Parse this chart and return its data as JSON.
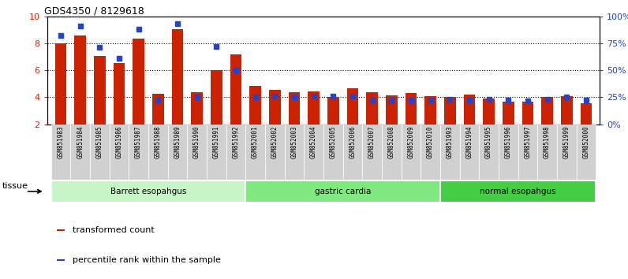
{
  "title": "GDS4350 / 8129618",
  "samples": [
    "GSM851983",
    "GSM851984",
    "GSM851985",
    "GSM851986",
    "GSM851987",
    "GSM851988",
    "GSM851989",
    "GSM851990",
    "GSM851991",
    "GSM851992",
    "GSM852001",
    "GSM852002",
    "GSM852003",
    "GSM852004",
    "GSM852005",
    "GSM852006",
    "GSM852007",
    "GSM852008",
    "GSM852009",
    "GSM852010",
    "GSM851993",
    "GSM851994",
    "GSM851995",
    "GSM851996",
    "GSM851997",
    "GSM851998",
    "GSM851999",
    "GSM852000"
  ],
  "red_values": [
    8.0,
    8.6,
    7.1,
    6.55,
    8.35,
    4.25,
    9.05,
    4.35,
    6.0,
    7.2,
    4.85,
    4.55,
    4.35,
    4.45,
    4.05,
    4.7,
    4.35,
    4.15,
    4.3,
    4.1,
    4.0,
    4.2,
    3.9,
    3.7,
    3.7,
    4.05,
    4.1,
    3.55
  ],
  "blue_values": [
    8.6,
    9.3,
    7.7,
    6.9,
    9.1,
    3.8,
    9.5,
    4.0,
    7.8,
    6.0,
    4.0,
    4.1,
    4.0,
    4.1,
    4.1,
    4.1,
    3.8,
    3.8,
    3.8,
    3.8,
    3.85,
    3.8,
    3.85,
    3.8,
    3.75,
    3.85,
    4.05,
    3.8
  ],
  "groups": [
    {
      "label": "Barrett esopahgus",
      "start": 0,
      "end": 10,
      "color": "#c8f5c8"
    },
    {
      "label": "gastric cardia",
      "start": 10,
      "end": 20,
      "color": "#80e880"
    },
    {
      "label": "normal esopahgus",
      "start": 20,
      "end": 28,
      "color": "#44cc44"
    }
  ],
  "ylim": [
    2,
    10
  ],
  "yticks_left": [
    2,
    4,
    6,
    8,
    10
  ],
  "red_color": "#cc2200",
  "blue_color": "#2244cc",
  "bar_width": 0.6,
  "plot_bg_color": "#ffffff",
  "xtick_bg_color": "#d0d0d0",
  "tissue_label": "tissue",
  "legend_red": "transformed count",
  "legend_blue": "percentile rank within the sample"
}
